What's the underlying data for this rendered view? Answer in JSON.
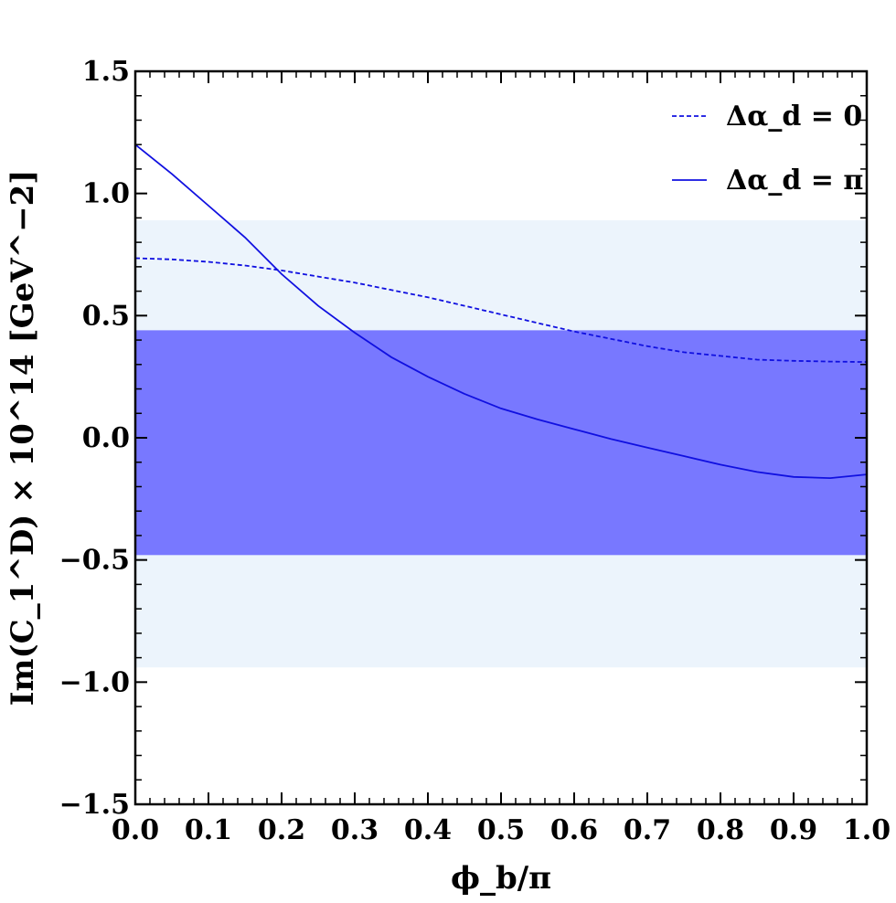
{
  "chart_data": {
    "type": "line",
    "xlabel": "ϕ_b/π",
    "ylabel": "Im(C_1^D) × 10^14 [GeV^−2]",
    "xlim": [
      0.0,
      1.0
    ],
    "ylim": [
      -1.5,
      1.5
    ],
    "x_ticks": [
      "0.0",
      "0.1",
      "0.2",
      "0.3",
      "0.4",
      "0.5",
      "0.6",
      "0.7",
      "0.8",
      "0.9",
      "1.0"
    ],
    "y_ticks": [
      "1.5",
      "1.0",
      "0.5",
      "0.0",
      "−0.5",
      "−1.0",
      "−1.5"
    ],
    "legend_position": "top-right",
    "bands": [
      {
        "ymin": -0.94,
        "ymax": 0.89,
        "color": "#ecf4fc"
      },
      {
        "ymin": -0.48,
        "ymax": 0.44,
        "color": "#7878ff"
      }
    ],
    "series": [
      {
        "name": "Δα_d = 0",
        "style": "dashed",
        "color": "#1010e0",
        "x": [
          0.0,
          0.05,
          0.1,
          0.15,
          0.2,
          0.25,
          0.3,
          0.35,
          0.4,
          0.45,
          0.5,
          0.55,
          0.6,
          0.65,
          0.7,
          0.75,
          0.8,
          0.85,
          0.9,
          0.95,
          1.0
        ],
        "values": [
          0.735,
          0.73,
          0.72,
          0.705,
          0.685,
          0.66,
          0.635,
          0.605,
          0.575,
          0.54,
          0.505,
          0.47,
          0.435,
          0.405,
          0.375,
          0.35,
          0.335,
          0.32,
          0.315,
          0.312,
          0.31
        ]
      },
      {
        "name": "Δα_d = π",
        "style": "solid",
        "color": "#1010e0",
        "x": [
          0.0,
          0.05,
          0.1,
          0.15,
          0.2,
          0.25,
          0.3,
          0.35,
          0.4,
          0.45,
          0.5,
          0.55,
          0.6,
          0.65,
          0.7,
          0.75,
          0.8,
          0.85,
          0.9,
          0.95,
          1.0
        ],
        "values": [
          1.2,
          1.08,
          0.95,
          0.82,
          0.67,
          0.54,
          0.43,
          0.33,
          0.25,
          0.18,
          0.12,
          0.075,
          0.035,
          -0.005,
          -0.04,
          -0.075,
          -0.11,
          -0.14,
          -0.16,
          -0.165,
          -0.15
        ]
      }
    ]
  }
}
